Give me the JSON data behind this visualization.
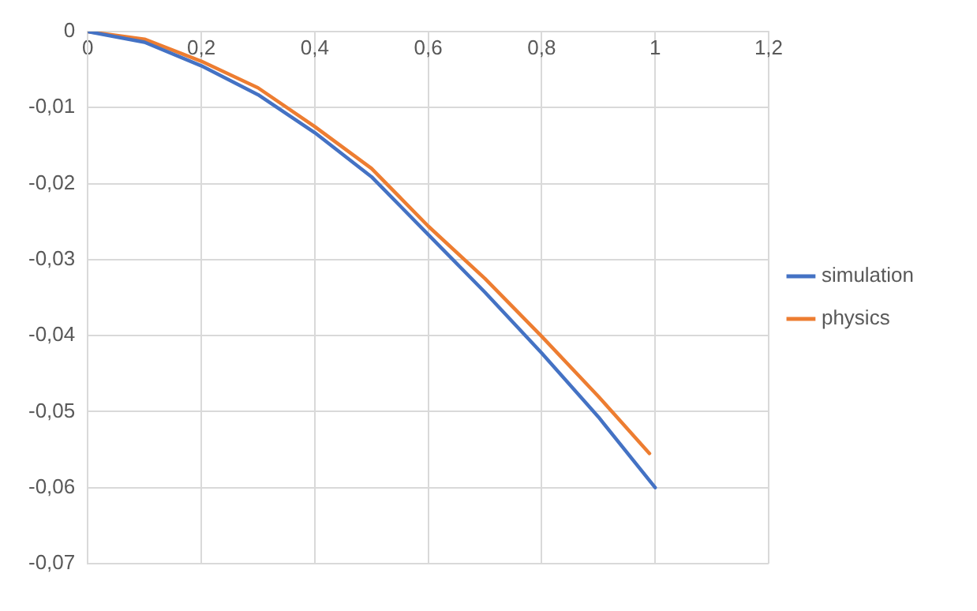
{
  "chart_data": {
    "type": "line",
    "x": [
      0,
      0.1,
      0.2,
      0.3,
      0.4,
      0.5,
      0.6,
      0.7,
      0.8,
      0.9,
      1
    ],
    "series": [
      {
        "name": "simulation",
        "color": "#4472c4",
        "values": [
          0,
          -0.0014,
          -0.0045,
          -0.0083,
          -0.0133,
          -0.0191,
          -0.0267,
          -0.0343,
          -0.0423,
          -0.0507,
          -0.06
        ]
      },
      {
        "name": "physics",
        "color": "#ed7d31",
        "x": [
          0,
          0.1,
          0.2,
          0.3,
          0.4,
          0.5,
          0.6,
          0.7,
          0.8,
          0.9,
          0.99
        ],
        "values": [
          0,
          -0.001,
          -0.0039,
          -0.0074,
          -0.0125,
          -0.018,
          -0.0256,
          -0.0325,
          -0.0401,
          -0.048,
          -0.0555
        ]
      }
    ],
    "xlim": [
      0,
      1.2
    ],
    "xticks": [
      0,
      {
        "value": 0.2,
        "label": "0,2"
      },
      {
        "value": 0.4,
        "label": "0,4"
      },
      {
        "value": 0.6,
        "label": "0,6"
      },
      {
        "value": 0.8,
        "label": "0,8"
      },
      1,
      {
        "value": 1.2,
        "label": "1,2"
      }
    ],
    "ylim": [
      -0.07,
      0
    ],
    "yticks": [
      {
        "value": -0.07,
        "label": "-0,07"
      },
      {
        "value": -0.06,
        "label": "-0,06"
      },
      {
        "value": -0.05,
        "label": "-0,05"
      },
      {
        "value": -0.04,
        "label": "-0,04"
      },
      {
        "value": -0.03,
        "label": "-0,03"
      },
      {
        "value": -0.02,
        "label": "-0,02"
      },
      {
        "value": -0.01,
        "label": "-0,01"
      },
      0
    ],
    "grid": true,
    "legend": "right",
    "marker": "none",
    "line_style": "solid"
  }
}
